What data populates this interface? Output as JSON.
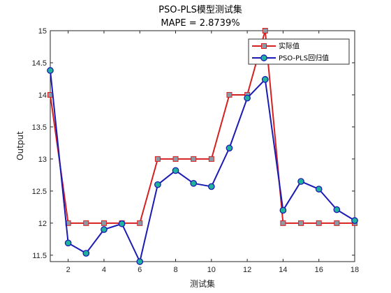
{
  "chart_data": {
    "type": "line",
    "title": "PSO-PLS模型测试集",
    "subtitle": "MAPE = 2.8739%",
    "xlabel": "测试集",
    "ylabel": "Output",
    "xlim": [
      1,
      18
    ],
    "ylim": [
      11.4,
      15
    ],
    "xticks": [
      2,
      4,
      6,
      8,
      10,
      12,
      14,
      16,
      18
    ],
    "yticks": [
      11.5,
      12,
      12.5,
      13,
      13.5,
      14,
      14.5,
      15
    ],
    "grid": false,
    "legend_position": "top-right",
    "x": [
      1,
      2,
      3,
      4,
      5,
      6,
      7,
      8,
      9,
      10,
      11,
      12,
      13,
      14,
      15,
      16,
      17,
      18
    ],
    "series": [
      {
        "name": "实际值",
        "color": "#d62020",
        "marker": "square",
        "marker_fill": "#8a9ba8",
        "values": [
          14.0,
          12.0,
          12.0,
          12.0,
          12.0,
          12.0,
          13.0,
          13.0,
          13.0,
          13.0,
          14.0,
          14.0,
          15.0,
          12.0,
          12.0,
          12.0,
          12.0,
          12.0
        ]
      },
      {
        "name": "PSO-PLS回归值",
        "color": "#1a1ab4",
        "marker": "circle",
        "marker_fill": "#1fb39c",
        "values": [
          14.38,
          11.69,
          11.53,
          11.9,
          11.99,
          11.4,
          12.6,
          12.82,
          12.62,
          12.57,
          13.17,
          13.95,
          14.24,
          12.2,
          12.65,
          12.53,
          12.21,
          12.04
        ]
      }
    ]
  }
}
